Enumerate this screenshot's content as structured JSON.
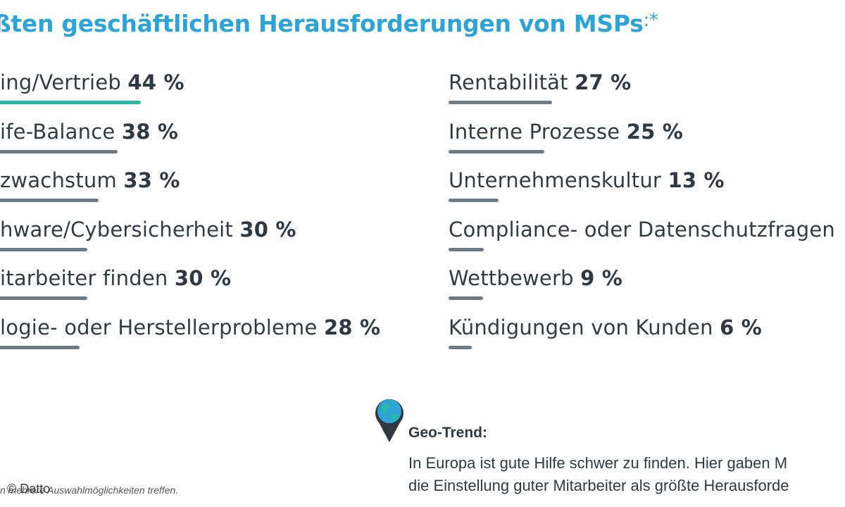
{
  "title": "ßten geschäftlichen Herausforderungen von MSPs",
  "title_suffix": ":*",
  "chart_data": {
    "type": "bar",
    "categories": [
      "ing/Vertrieb",
      "ife-Balance",
      "zwachstum",
      "hware/Cybersicherheit",
      "itarbeiter finden",
      "logie- oder Herstellerprobleme",
      "Rentabilität",
      "Interne Prozesse",
      "Unternehmenskultur",
      "Compliance- oder Datenschutzfragen",
      "Wettbewerb",
      "Kündigungen von Kunden"
    ],
    "values": [
      44,
      38,
      33,
      30,
      30,
      28,
      27,
      25,
      13,
      null,
      9,
      6
    ],
    "value_labels": [
      "44 %",
      "38 %",
      "33 %",
      "30 %",
      "30 %",
      "28 %",
      "27 %",
      "25 %",
      "13 %",
      "",
      "9 %",
      "6 %"
    ],
    "colors": {
      "highlight": "#27b8a8",
      "bar": "#6d7b86",
      "title": "#2ea3d6"
    }
  },
  "geo": {
    "icon": "globe-pin-icon",
    "title": "Geo-Trend:",
    "line1": "In Europa ist gute Hilfe schwer zu finden. Hier gaben M",
    "line2": "die Einstellung guter Mitarbeiter als größte Herausforde"
  },
  "footnote": "n  mehrere Auswahlmöglichkeiten treffen.",
  "copyright": "© Datto"
}
